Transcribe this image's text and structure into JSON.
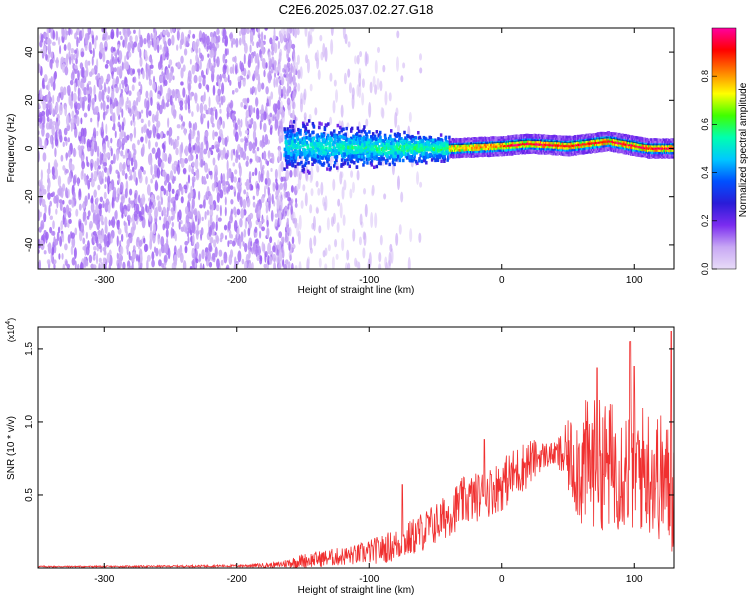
{
  "figure_title": "C2E6.2025.037.02.27.G18",
  "chart_data": [
    {
      "type": "heatmap",
      "title": "C2E6.2025.037.02.27.G18",
      "xlabel": "Height of straight line (km)",
      "ylabel": "Frequency (Hz)",
      "xlim": [
        -350,
        130
      ],
      "ylim": [
        -50,
        50
      ],
      "x_ticks": [
        -300,
        -200,
        -100,
        0,
        100
      ],
      "y_ticks": [
        -40,
        -20,
        0,
        20,
        40
      ],
      "colorbar": {
        "label": "Normalized spectral amplitude",
        "range": [
          0,
          1
        ],
        "ticks": [
          0.0,
          0.2,
          0.4,
          0.6,
          0.8
        ],
        "tick_labels": [
          "0.0",
          "0.2",
          "0.4",
          "0.6",
          "0.8"
        ],
        "colors": [
          "#e8dcf8",
          "#c8a8f4",
          "#7b2cf0",
          "#2a1cd8",
          "#0050ff",
          "#00c8ff",
          "#00ffb0",
          "#40ff00",
          "#ffff00",
          "#ff8000",
          "#ff0000",
          "#ff00a0"
        ]
      },
      "regions": [
        {
          "x_range": [
            -350,
            -165
          ],
          "freq_spread": 50,
          "amplitude": [
            0.05,
            0.15
          ],
          "description": "broadband noise"
        },
        {
          "x_range": [
            -165,
            -140
          ],
          "freq_spread": 50,
          "amplitude": [
            0.04,
            0.12
          ],
          "description": "noise decaying"
        },
        {
          "x_range": [
            -165,
            -40
          ],
          "freq_spread": 10,
          "amplitude": [
            0.15,
            0.45
          ],
          "description": "signal emerging near 0 Hz"
        },
        {
          "x_range": [
            -40,
            130
          ],
          "freq_spread": 3,
          "amplitude": [
            0.5,
            1.0
          ],
          "description": "strong narrow carrier at ~0-2 Hz"
        }
      ],
      "ridge": [
        {
          "x": -160,
          "freq": 1
        },
        {
          "x": -100,
          "freq": 0
        },
        {
          "x": -40,
          "freq": 0
        },
        {
          "x": 0,
          "freq": 1
        },
        {
          "x": 20,
          "freq": 2
        },
        {
          "x": 50,
          "freq": 1
        },
        {
          "x": 80,
          "freq": 3
        },
        {
          "x": 110,
          "freq": 0
        },
        {
          "x": 130,
          "freq": 0
        }
      ]
    },
    {
      "type": "line",
      "xlabel": "Height of straight line (km)",
      "ylabel": "SNR (10 * v/v)",
      "y_multiplier": "(x10^4)",
      "xlim": [
        -350,
        130
      ],
      "ylim": [
        0,
        1.65
      ],
      "x_ticks": [
        -300,
        -200,
        -100,
        0,
        100
      ],
      "y_ticks": [
        0.5,
        1.0,
        1.5
      ],
      "y_tick_labels": [
        "0.5",
        "1.0",
        "1.5"
      ],
      "color": "#f03030",
      "series": [
        {
          "x": [
            -350,
            -300,
            -250,
            -200,
            -170,
            -150,
            -130,
            -110,
            -90,
            -75,
            -60,
            -45,
            -30,
            -15,
            0,
            10,
            20,
            30,
            40,
            50,
            60,
            70,
            80,
            90,
            100,
            110,
            120,
            130
          ],
          "mean": [
            0.01,
            0.01,
            0.012,
            0.015,
            0.02,
            0.05,
            0.07,
            0.09,
            0.13,
            0.17,
            0.25,
            0.33,
            0.45,
            0.5,
            0.57,
            0.65,
            0.72,
            0.77,
            0.78,
            0.76,
            0.7,
            0.72,
            0.7,
            0.7,
            0.69,
            0.68,
            0.62,
            0.5
          ],
          "amplitude": [
            0.005,
            0.005,
            0.006,
            0.008,
            0.02,
            0.05,
            0.06,
            0.07,
            0.1,
            0.12,
            0.14,
            0.15,
            0.17,
            0.17,
            0.18,
            0.18,
            0.17,
            0.1,
            0.08,
            0.25,
            0.45,
            0.45,
            0.45,
            0.45,
            0.45,
            0.45,
            0.45,
            0.45
          ]
        }
      ],
      "peaks": [
        {
          "x": -75,
          "y": 0.57
        },
        {
          "x": -13,
          "y": 0.88
        },
        {
          "x": -8,
          "y": 0.64
        },
        {
          "x": 72,
          "y": 1.37
        },
        {
          "x": 100,
          "y": 1.38
        },
        {
          "x": 97,
          "y": 1.55
        },
        {
          "x": 128,
          "y": 1.62
        }
      ]
    }
  ]
}
